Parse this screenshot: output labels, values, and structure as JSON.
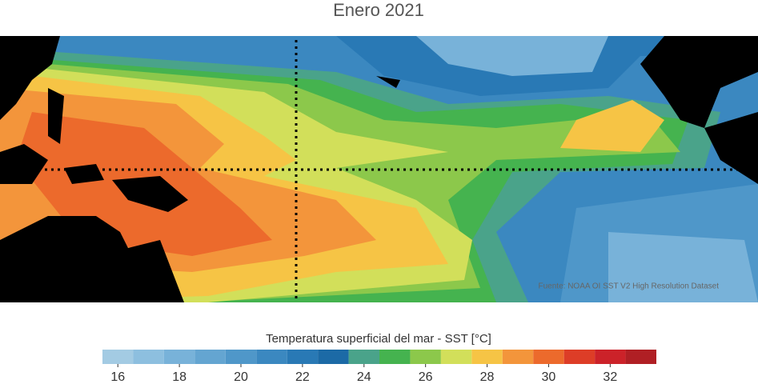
{
  "title": "Enero 2021",
  "source": "Fuente: NOAA OI SST V2 High Resolution Dataset",
  "colorbar": {
    "label": "Temperatura superficial del mar - SST  [°C]",
    "bins": [
      15.5,
      16.5,
      17.5,
      18.5,
      19.5,
      20.5,
      21.5,
      22.5,
      23.5,
      24.5,
      25.5,
      26.5,
      27.5,
      28.5,
      29.5,
      30.5,
      31.5,
      32.5,
      33.5
    ],
    "colors": [
      "#a3cbe3",
      "#8dbfdf",
      "#78b2d9",
      "#64a5d1",
      "#4f97c9",
      "#3b88c0",
      "#2979b5",
      "#1c6aa6",
      "#4aa38a",
      "#45b34f",
      "#8cc84b",
      "#d2df5a",
      "#f6c445",
      "#f3953b",
      "#ec6a2c",
      "#dd3d27",
      "#cc2229",
      "#b01f24"
    ],
    "ticks": [
      16,
      18,
      20,
      22,
      24,
      26,
      28,
      30,
      32
    ]
  }
}
